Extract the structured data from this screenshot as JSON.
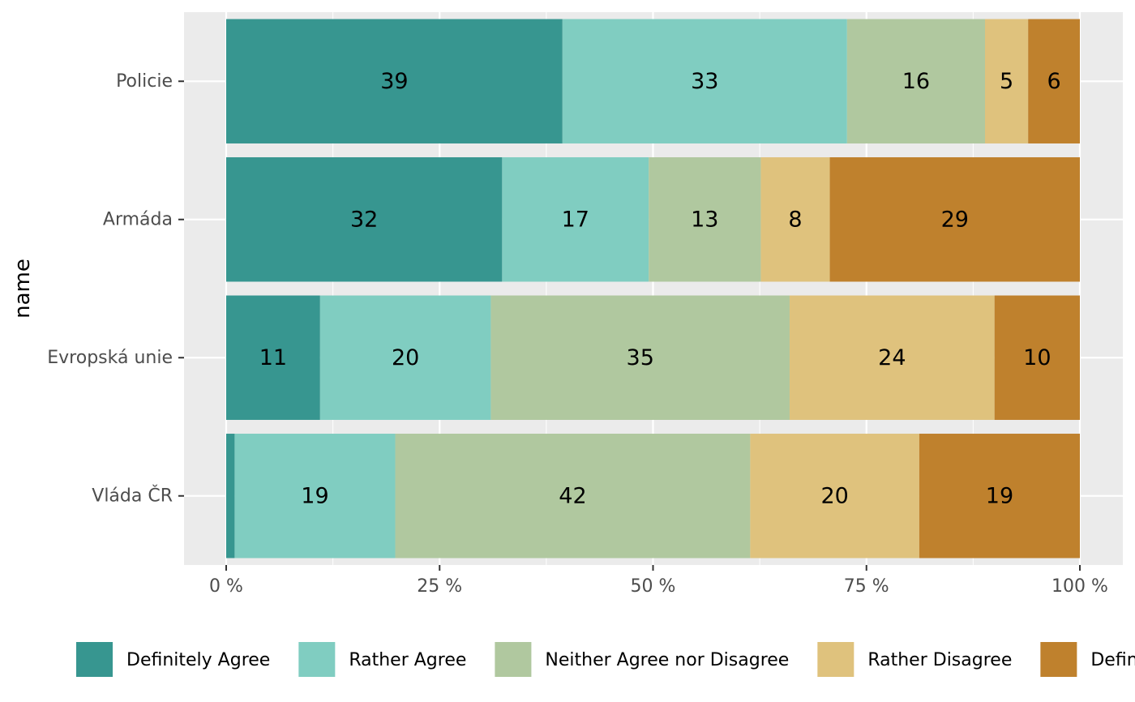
{
  "chart_data": {
    "type": "bar",
    "orientation": "horizontal",
    "stacked": true,
    "normalized": true,
    "categories": [
      "Policie",
      "Armáda",
      "Evropská unie",
      "Vláda ČR"
    ],
    "series": [
      {
        "name": "Definitely Agree",
        "color": "#379690",
        "values": [
          39,
          32,
          11,
          1
        ],
        "labels": [
          "39",
          "32",
          "11",
          ""
        ]
      },
      {
        "name": "Rather Agree",
        "color": "#80cdc1",
        "values": [
          33,
          17,
          20,
          19
        ],
        "labels": [
          "33",
          "17",
          "20",
          "19"
        ]
      },
      {
        "name": "Neither Agree nor Disagree",
        "color": "#b0c89f",
        "values": [
          16,
          13,
          35,
          42
        ],
        "labels": [
          "16",
          "13",
          "35",
          "42"
        ]
      },
      {
        "name": "Rather Disagree",
        "color": "#dfc27d",
        "values": [
          5,
          8,
          24,
          20
        ],
        "labels": [
          "5",
          "8",
          "24",
          "20"
        ]
      },
      {
        "name": "Definitely Disagree",
        "color": "#bf812d",
        "values": [
          6,
          29,
          10,
          19
        ],
        "labels": [
          "6",
          "29",
          "10",
          "19"
        ]
      }
    ],
    "xlabel": "",
    "ylabel": "name",
    "xlim": [
      0,
      1
    ],
    "x_ticks": [
      0,
      0.25,
      0.5,
      0.75,
      1
    ],
    "x_tick_labels": [
      "0 %",
      "25 %",
      "50 %",
      "75 %",
      "100 %"
    ],
    "grid": true,
    "legend_position": "bottom",
    "panel_color": "#ebebeb"
  }
}
